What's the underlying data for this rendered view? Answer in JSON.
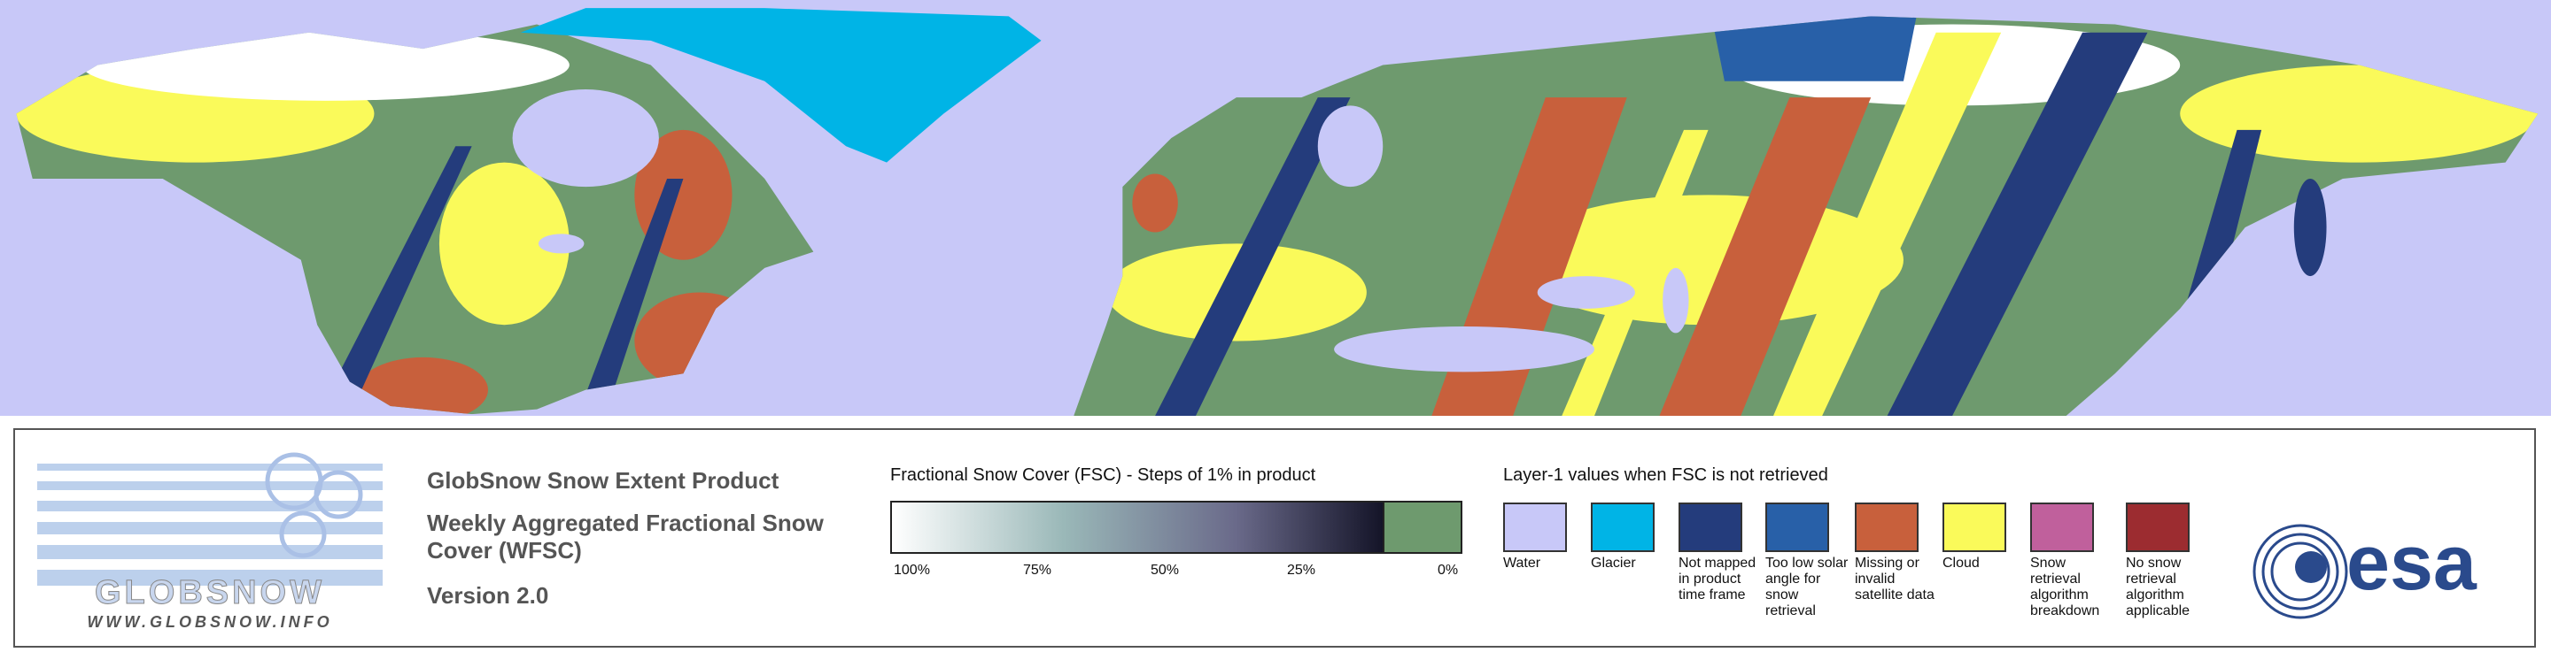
{
  "logo": {
    "name": "GLOBSNOW",
    "url": "WWW.GLOBSNOW.INFO"
  },
  "product": {
    "title": "GlobSnow Snow Extent Product",
    "subtitle": "Weekly Aggregated Fractional Snow Cover (WFSC)",
    "version": "Version 2.0"
  },
  "fsc_legend": {
    "title": "Fractional Snow Cover (FSC) - Steps of 1% in product",
    "labels": [
      "100%",
      "75%",
      "50%",
      "25%",
      "0%"
    ]
  },
  "layer1_legend": {
    "title": "Layer-1 values when FSC is not retrieved",
    "items": [
      {
        "label": "Water",
        "color": "#c8c8f8"
      },
      {
        "label": "Glacier",
        "color": "#00b4e6"
      },
      {
        "label": "Not mapped in product time frame",
        "color": "#243c7c"
      },
      {
        "label": "Too low solar angle for snow retrieval",
        "color": "#2860a8"
      },
      {
        "label": "Missing or invalid satellite data",
        "color": "#c8603c"
      },
      {
        "label": "Cloud",
        "color": "#fafa5a"
      },
      {
        "label": "Snow retrieval algorithm breakdown",
        "color": "#c0609c"
      },
      {
        "label": "No snow retrieval algorithm applicable",
        "color": "#9c2c30"
      }
    ]
  },
  "agency": "esa"
}
